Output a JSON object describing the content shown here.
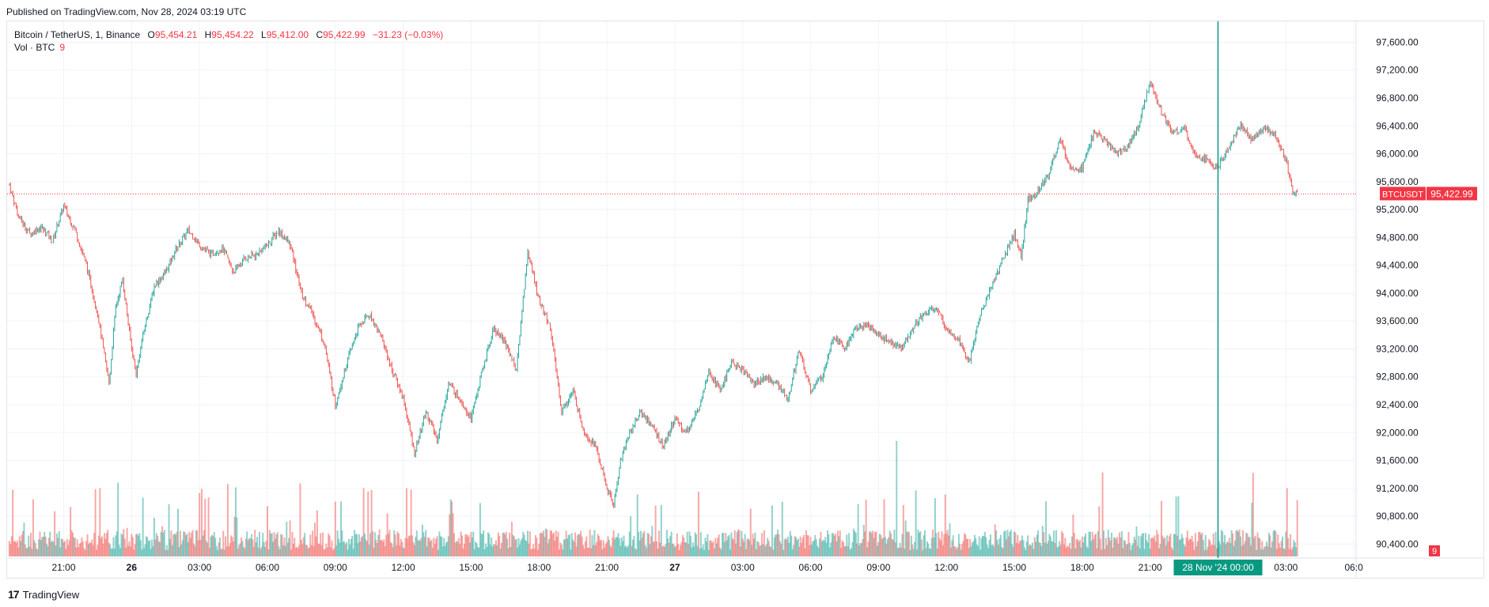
{
  "header": {
    "published": "Published on TradingView.com, Nov 28, 2024 03:19 UTC"
  },
  "legend": {
    "symbol": "Bitcoin / TetherUS, 1, Binance",
    "open_label": "O",
    "open": "95,454.21",
    "high_label": "H",
    "high": "95,454.22",
    "low_label": "L",
    "low": "95,412.00",
    "close_label": "C",
    "close": "95,422.99",
    "change": "−31.23 (−0.03%)",
    "vol_label": "Vol · BTC",
    "vol_value": "9"
  },
  "footer": {
    "brand": "TradingView"
  },
  "colors": {
    "up": "#26a69a",
    "down": "#ef5350",
    "label_red": "#f23645",
    "crosshair": "#089981",
    "grid": "#f0f3fa"
  },
  "chart_data": {
    "type": "candlestick",
    "symbol": "BTCUSDT",
    "interval": "1",
    "exchange": "Binance",
    "ylim": [
      90200,
      97900
    ],
    "y_ticks": [
      "97,600.00",
      "97,200.00",
      "96,800.00",
      "96,400.00",
      "96,000.00",
      "95,600.00",
      "95,200.00",
      "94,800.00",
      "94,400.00",
      "94,000.00",
      "93,600.00",
      "93,200.00",
      "92,800.00",
      "92,400.00",
      "92,000.00",
      "91,600.00",
      "91,200.00",
      "90,800.00",
      "90,400.00"
    ],
    "y_tick_values": [
      97600,
      97200,
      96800,
      96400,
      96000,
      95600,
      95200,
      94800,
      94400,
      94000,
      93600,
      93200,
      92800,
      92400,
      92000,
      91600,
      91200,
      90800,
      90400
    ],
    "x_ticks": [
      {
        "label": "21:00",
        "h": 21
      },
      {
        "label": "26",
        "h": 24
      },
      {
        "label": "03:00",
        "h": 27
      },
      {
        "label": "06:00",
        "h": 30
      },
      {
        "label": "09:00",
        "h": 33
      },
      {
        "label": "12:00",
        "h": 36
      },
      {
        "label": "15:00",
        "h": 39
      },
      {
        "label": "18:00",
        "h": 42
      },
      {
        "label": "21:00",
        "h": 45
      },
      {
        "label": "27",
        "h": 48
      },
      {
        "label": "03:00",
        "h": 51
      },
      {
        "label": "06:00",
        "h": 54
      },
      {
        "label": "09:00",
        "h": 57
      },
      {
        "label": "12:00",
        "h": 60
      },
      {
        "label": "15:00",
        "h": 63
      },
      {
        "label": "18:00",
        "h": 66
      },
      {
        "label": "21:00",
        "h": 69
      },
      {
        "label": "03:00",
        "h": 75
      },
      {
        "label": "06:0",
        "h": 78
      }
    ],
    "x_range_hours": [
      18.5,
      78.1
    ],
    "crosshair": {
      "h": 72,
      "label": "28 Nov '24   00:00"
    },
    "last_price": {
      "value": 95422.99,
      "label": "95,422.99",
      "symbol_label": "BTCUSDT"
    },
    "volume_label": "9",
    "path": [
      [
        18.6,
        95550
      ],
      [
        19.0,
        95100
      ],
      [
        19.5,
        94850
      ],
      [
        20.0,
        94950
      ],
      [
        20.5,
        94750
      ],
      [
        21.0,
        95250
      ],
      [
        21.5,
        94900
      ],
      [
        22.0,
        94400
      ],
      [
        22.5,
        93700
      ],
      [
        23.0,
        92700
      ],
      [
        23.3,
        93800
      ],
      [
        23.6,
        94200
      ],
      [
        24.0,
        93200
      ],
      [
        24.2,
        92850
      ],
      [
        24.5,
        93400
      ],
      [
        25.0,
        94100
      ],
      [
        25.5,
        94300
      ],
      [
        26.0,
        94650
      ],
      [
        26.5,
        94900
      ],
      [
        27.0,
        94700
      ],
      [
        27.5,
        94550
      ],
      [
        28.0,
        94650
      ],
      [
        28.5,
        94300
      ],
      [
        29.0,
        94500
      ],
      [
        29.5,
        94550
      ],
      [
        30.0,
        94700
      ],
      [
        30.5,
        94900
      ],
      [
        31.0,
        94700
      ],
      [
        31.5,
        94000
      ],
      [
        32.0,
        93700
      ],
      [
        32.5,
        93300
      ],
      [
        33.0,
        92400
      ],
      [
        33.5,
        93000
      ],
      [
        34.0,
        93500
      ],
      [
        34.5,
        93700
      ],
      [
        35.0,
        93400
      ],
      [
        35.5,
        92900
      ],
      [
        36.0,
        92500
      ],
      [
        36.5,
        91700
      ],
      [
        37.0,
        92300
      ],
      [
        37.5,
        91900
      ],
      [
        38.0,
        92700
      ],
      [
        38.5,
        92500
      ],
      [
        39.0,
        92200
      ],
      [
        39.5,
        92900
      ],
      [
        40.0,
        93500
      ],
      [
        40.5,
        93300
      ],
      [
        41.0,
        92900
      ],
      [
        41.5,
        94600
      ],
      [
        42.0,
        93900
      ],
      [
        42.5,
        93500
      ],
      [
        43.0,
        92300
      ],
      [
        43.5,
        92600
      ],
      [
        44.0,
        92000
      ],
      [
        44.5,
        91800
      ],
      [
        45.0,
        91200
      ],
      [
        45.3,
        90950
      ],
      [
        45.6,
        91600
      ],
      [
        46.0,
        92000
      ],
      [
        46.5,
        92300
      ],
      [
        47.0,
        92100
      ],
      [
        47.5,
        91800
      ],
      [
        48.0,
        92200
      ],
      [
        48.5,
        92000
      ],
      [
        49.0,
        92300
      ],
      [
        49.5,
        92900
      ],
      [
        50.0,
        92600
      ],
      [
        50.5,
        93000
      ],
      [
        51.0,
        92900
      ],
      [
        51.5,
        92700
      ],
      [
        52.0,
        92800
      ],
      [
        52.5,
        92700
      ],
      [
        53.0,
        92500
      ],
      [
        53.5,
        93200
      ],
      [
        54.0,
        92600
      ],
      [
        54.5,
        92800
      ],
      [
        55.0,
        93400
      ],
      [
        55.5,
        93200
      ],
      [
        56.0,
        93500
      ],
      [
        56.5,
        93550
      ],
      [
        57.0,
        93400
      ],
      [
        57.5,
        93300
      ],
      [
        58.0,
        93200
      ],
      [
        58.5,
        93500
      ],
      [
        59.0,
        93700
      ],
      [
        59.5,
        93800
      ],
      [
        60.0,
        93500
      ],
      [
        60.5,
        93350
      ],
      [
        61.0,
        93000
      ],
      [
        61.5,
        93700
      ],
      [
        62.0,
        94100
      ],
      [
        62.5,
        94500
      ],
      [
        63.0,
        94850
      ],
      [
        63.3,
        94500
      ],
      [
        63.6,
        95350
      ],
      [
        64.0,
        95450
      ],
      [
        64.5,
        95700
      ],
      [
        65.0,
        96200
      ],
      [
        65.5,
        95800
      ],
      [
        66.0,
        95800
      ],
      [
        66.5,
        96300
      ],
      [
        67.0,
        96200
      ],
      [
        67.5,
        96000
      ],
      [
        68.0,
        96100
      ],
      [
        68.5,
        96400
      ],
      [
        69.0,
        97050
      ],
      [
        69.5,
        96600
      ],
      [
        70.0,
        96300
      ],
      [
        70.5,
        96350
      ],
      [
        71.0,
        96000
      ],
      [
        71.5,
        95900
      ],
      [
        72.0,
        95800
      ],
      [
        72.5,
        96100
      ],
      [
        73.0,
        96400
      ],
      [
        73.5,
        96200
      ],
      [
        74.0,
        96350
      ],
      [
        74.5,
        96300
      ],
      [
        75.0,
        95900
      ],
      [
        75.3,
        95450
      ],
      [
        75.5,
        95423
      ]
    ]
  }
}
